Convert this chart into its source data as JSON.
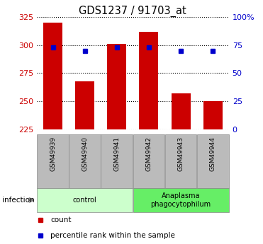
{
  "title": "GDS1237 / 91703_at",
  "samples": [
    "GSM49939",
    "GSM49940",
    "GSM49941",
    "GSM49942",
    "GSM49943",
    "GSM49944"
  ],
  "counts": [
    320,
    268,
    301,
    312,
    257,
    250
  ],
  "percentile_ranks": [
    73,
    70,
    73,
    73,
    70,
    70
  ],
  "ymin": 225,
  "ymax": 325,
  "yticks": [
    225,
    250,
    275,
    300,
    325
  ],
  "right_yticks": [
    0,
    25,
    50,
    75,
    100
  ],
  "right_yticklabels": [
    "0",
    "25",
    "50",
    "75",
    "100%"
  ],
  "bar_color": "#cc0000",
  "marker_color": "#0000cc",
  "bar_width": 0.6,
  "group_colors": [
    "#ccffcc",
    "#66ee66"
  ],
  "group_labels": [
    "control",
    "Anaplasma\nphagocytophilum"
  ],
  "group_label_text": "infection",
  "left_axis_color": "#cc0000",
  "right_axis_color": "#0000cc",
  "tick_area_bg": "#bbbbbb",
  "legend_count_label": "count",
  "legend_percentile_label": "percentile rank within the sample",
  "fig_width": 3.71,
  "fig_height": 3.45,
  "dpi": 100
}
